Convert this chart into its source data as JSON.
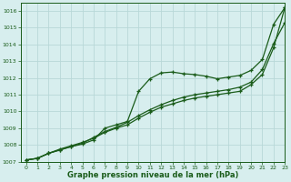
{
  "bg_color": "#d7eeee",
  "grid_color": "#b8d8d8",
  "line_color": "#1a5c1a",
  "xlabel": "Graphe pression niveau de la mer (hPa)",
  "ylim": [
    1007,
    1016.5
  ],
  "xlim": [
    -0.5,
    23
  ],
  "yticks": [
    1007,
    1008,
    1009,
    1010,
    1011,
    1012,
    1013,
    1014,
    1015,
    1016
  ],
  "xticks": [
    0,
    1,
    2,
    3,
    4,
    5,
    6,
    7,
    8,
    9,
    10,
    11,
    12,
    13,
    14,
    15,
    16,
    17,
    18,
    19,
    20,
    21,
    22,
    23
  ],
  "series1_x": [
    0,
    1,
    2,
    3,
    4,
    5,
    6,
    7,
    8,
    9,
    10,
    11,
    12,
    13,
    14,
    15,
    16,
    17,
    18,
    19,
    20,
    21,
    22,
    23
  ],
  "series1_y": [
    1007.1,
    1007.2,
    1007.5,
    1007.7,
    1007.9,
    1008.05,
    1008.3,
    1009.0,
    1009.2,
    1009.4,
    1011.2,
    1011.95,
    1012.3,
    1012.35,
    1012.25,
    1012.2,
    1012.1,
    1011.95,
    1012.05,
    1012.15,
    1012.45,
    1013.1,
    1015.2,
    1016.2
  ],
  "series2_x": [
    0,
    1,
    2,
    3,
    4,
    5,
    6,
    7,
    8,
    9,
    10,
    11,
    12,
    13,
    14,
    15,
    16,
    17,
    18,
    19,
    20,
    21,
    22,
    23
  ],
  "series2_y": [
    1007.1,
    1007.2,
    1007.5,
    1007.7,
    1007.9,
    1008.1,
    1008.45,
    1008.8,
    1009.05,
    1009.35,
    1009.75,
    1010.1,
    1010.4,
    1010.65,
    1010.85,
    1011.0,
    1011.1,
    1011.2,
    1011.3,
    1011.45,
    1011.75,
    1012.5,
    1014.05,
    1015.3
  ],
  "series3_x": [
    0,
    1,
    2,
    3,
    4,
    5,
    6,
    7,
    8,
    9,
    10,
    11,
    12,
    13,
    14,
    15,
    16,
    17,
    18,
    19,
    20,
    21,
    22,
    23
  ],
  "series3_y": [
    1007.1,
    1007.2,
    1007.5,
    1007.75,
    1007.95,
    1008.15,
    1008.4,
    1008.75,
    1009.0,
    1009.2,
    1009.6,
    1009.95,
    1010.25,
    1010.45,
    1010.65,
    1010.8,
    1010.9,
    1011.0,
    1011.1,
    1011.2,
    1011.6,
    1012.2,
    1013.8,
    1016.2
  ]
}
